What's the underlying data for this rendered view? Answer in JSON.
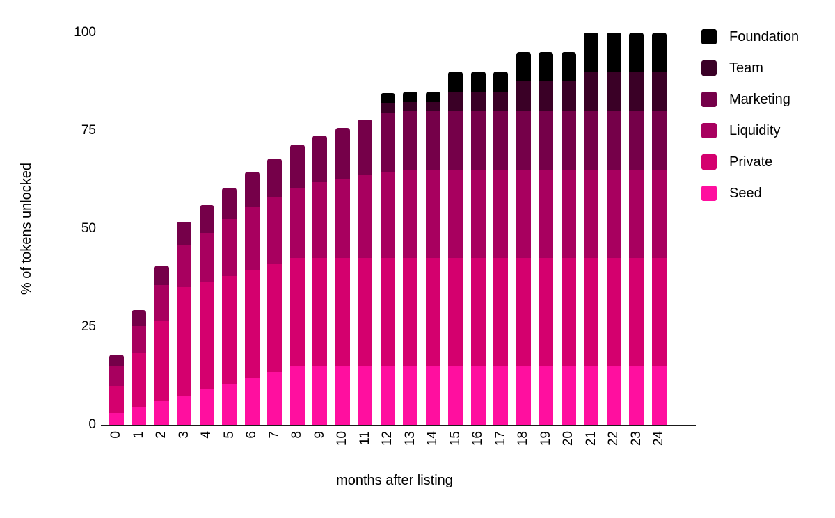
{
  "chart_data": {
    "type": "bar",
    "stacked": true,
    "title": "",
    "xlabel": "months after listing",
    "ylabel": "% of tokens unlocked",
    "categories": [
      "0",
      "1",
      "2",
      "3",
      "4",
      "5",
      "6",
      "7",
      "8",
      "9",
      "10",
      "11",
      "12",
      "13",
      "14",
      "15",
      "16",
      "17",
      "18",
      "19",
      "20",
      "21",
      "22",
      "23",
      "24"
    ],
    "ylim": [
      0,
      100
    ],
    "y_ticks": [
      0,
      25,
      50,
      75,
      100
    ],
    "grid": true,
    "legend_position": "right",
    "legend_order_top_to_bottom": [
      "Foundation",
      "Team",
      "Marketing",
      "Liquidity",
      "Private",
      "Seed"
    ],
    "series": [
      {
        "name": "Seed",
        "color": "#ff0f9f",
        "values": [
          3,
          4.5,
          6,
          7.5,
          9,
          10.5,
          12,
          13.5,
          15,
          15,
          15,
          15,
          15,
          15,
          15,
          15,
          15,
          15,
          15,
          15,
          15,
          15,
          15,
          15,
          15
        ]
      },
      {
        "name": "Private",
        "color": "#d4006e",
        "values": [
          6.9,
          13.75,
          20.6,
          27.5,
          27.5,
          27.5,
          27.5,
          27.5,
          27.5,
          27.5,
          27.5,
          27.5,
          27.5,
          27.5,
          27.5,
          27.5,
          27.5,
          27.5,
          27.5,
          27.5,
          27.5,
          27.5,
          27.5,
          27.5,
          27.5
        ]
      },
      {
        "name": "Liquidity",
        "color": "#a8005f",
        "values": [
          5,
          7,
          9,
          10.75,
          12.5,
          14.5,
          16,
          17,
          18,
          19.3,
          20.3,
          21.3,
          22,
          22.5,
          22.5,
          22.5,
          22.5,
          22.5,
          22.5,
          22.5,
          22.5,
          22.5,
          22.5,
          22.5,
          22.5
        ]
      },
      {
        "name": "Marketing",
        "color": "#750049",
        "values": [
          3,
          4,
          5,
          6,
          7,
          8,
          9,
          10,
          11,
          12,
          13,
          14,
          15,
          15,
          15,
          15,
          15,
          15,
          15,
          15,
          15,
          15,
          15,
          15,
          15
        ]
      },
      {
        "name": "Team",
        "color": "#3a0026",
        "values": [
          0,
          0,
          0,
          0,
          0,
          0,
          0,
          0,
          0,
          0,
          0,
          0,
          2.5,
          2.5,
          2.5,
          5,
          5,
          5,
          7.5,
          7.5,
          7.5,
          10,
          10,
          10,
          10
        ]
      },
      {
        "name": "Foundation",
        "color": "#000000",
        "values": [
          0,
          0,
          0,
          0,
          0,
          0,
          0,
          0,
          0,
          0,
          0,
          0,
          2.5,
          2.5,
          2.5,
          5,
          5,
          5,
          7.5,
          7.5,
          7.5,
          10,
          10,
          10,
          10
        ]
      }
    ],
    "grid_color": "#cccccc",
    "axis_line_color": "#1a1a1a",
    "text_color": "#000000"
  }
}
